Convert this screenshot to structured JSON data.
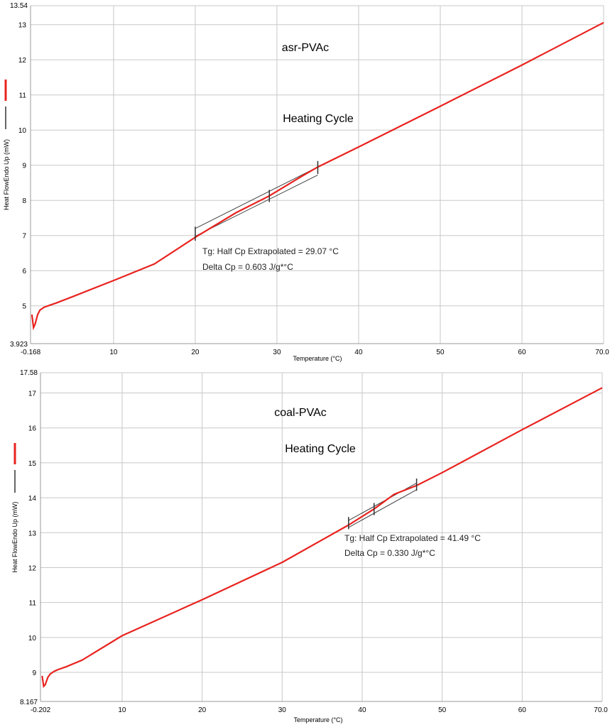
{
  "chart_data": [
    {
      "type": "line",
      "title": "asr-PVAc",
      "subtitle": "Heating Cycle",
      "xlabel": "Temperature (°C)",
      "ylabel": "Heat FlowEndo Up (mW)",
      "xlim": [
        -0.168,
        70.0
      ],
      "ylim": [
        3.923,
        13.54
      ],
      "x_ticks": [
        10,
        20,
        30,
        40,
        50,
        60
      ],
      "x_tick_labels": [
        "10",
        "20",
        "30",
        "40",
        "50",
        "60"
      ],
      "x_min_label": "-0.168",
      "x_max_label": "70.0",
      "y_ticks": [
        5,
        6,
        7,
        8,
        9,
        10,
        11,
        12,
        13
      ],
      "y_tick_labels": [
        "5",
        "6",
        "7",
        "8",
        "9",
        "10",
        "11",
        "12",
        "13"
      ],
      "y_min_label": "3.923",
      "y_max_label": "13.54",
      "series": [
        {
          "name": "Heat Flow",
          "color": "#e8231f",
          "x": [
            0.0,
            0.2,
            0.4,
            0.7,
            1.0,
            1.5,
            2.0,
            3.0,
            5.0,
            10.0,
            15.0,
            20.0,
            25.0,
            29.0,
            33.0,
            35.0,
            40.0,
            50.0,
            60.0,
            70.0
          ],
          "y": [
            4.75,
            4.38,
            4.48,
            4.75,
            4.88,
            4.96,
            5.0,
            5.08,
            5.26,
            5.72,
            6.19,
            6.95,
            7.65,
            8.12,
            8.68,
            8.95,
            9.52,
            10.68,
            11.85,
            13.06
          ]
        }
      ],
      "tangent_lines": [
        {
          "x": [
            20.0,
            35.0
          ],
          "y": [
            7.2,
            8.95
          ]
        },
        {
          "x": [
            20.0,
            35.0
          ],
          "y": [
            6.98,
            8.72
          ]
        }
      ],
      "tg_markers": [
        {
          "x": 20.0,
          "y_low": 6.85,
          "y_high": 7.25
        },
        {
          "x": 29.07,
          "y_low": 7.95,
          "y_high": 8.3
        },
        {
          "x": 35.0,
          "y_low": 8.75,
          "y_high": 9.12
        }
      ],
      "annotations": [
        "Tg: Half Cp Extrapolated = 29.07 °C",
        "Delta Cp = 0.603 J/g*°C"
      ]
    },
    {
      "type": "line",
      "title": "coal-PVAc",
      "subtitle": "Heating Cycle",
      "xlabel": "Temperature (°C)",
      "ylabel": "Heat FlowEndo Up (mW)",
      "xlim": [
        -0.202,
        70.0
      ],
      "ylim": [
        8.167,
        17.58
      ],
      "x_ticks": [
        10,
        20,
        30,
        40,
        50,
        60
      ],
      "x_tick_labels": [
        "10",
        "20",
        "30",
        "40",
        "50",
        "60"
      ],
      "x_min_label": "-0.202",
      "x_max_label": "70.0",
      "y_ticks": [
        9,
        10,
        11,
        12,
        13,
        14,
        15,
        16,
        17
      ],
      "y_tick_labels": [
        "9",
        "10",
        "11",
        "12",
        "13",
        "14",
        "15",
        "16",
        "17"
      ],
      "y_min_label": "8.167",
      "y_max_label": "17.58",
      "series": [
        {
          "name": "Heat Flow",
          "color": "#e8231f",
          "x": [
            0.0,
            0.2,
            0.4,
            0.7,
            1.0,
            1.5,
            2.0,
            3.0,
            5.0,
            10.0,
            20.0,
            30.0,
            38.3,
            41.5,
            44.0,
            46.8,
            50.0,
            60.0,
            70.0
          ],
          "y": [
            8.9,
            8.6,
            8.65,
            8.85,
            8.95,
            9.03,
            9.08,
            9.16,
            9.35,
            10.05,
            11.08,
            12.15,
            13.22,
            13.68,
            14.1,
            14.35,
            14.72,
            15.95,
            17.15
          ]
        }
      ],
      "tangent_lines": [
        {
          "x": [
            38.3,
            46.8
          ],
          "y": [
            13.35,
            14.42
          ]
        },
        {
          "x": [
            38.3,
            46.8
          ],
          "y": [
            13.15,
            14.23
          ]
        }
      ],
      "tg_markers": [
        {
          "x": 38.3,
          "y_low": 13.1,
          "y_high": 13.45
        },
        {
          "x": 41.49,
          "y_low": 13.5,
          "y_high": 13.85
        },
        {
          "x": 46.8,
          "y_low": 14.2,
          "y_high": 14.55
        }
      ],
      "annotations": [
        "Tg: Half Cp Extrapolated = 41.49 °C",
        "Delta Cp = 0.330 J/g*°C"
      ]
    }
  ]
}
